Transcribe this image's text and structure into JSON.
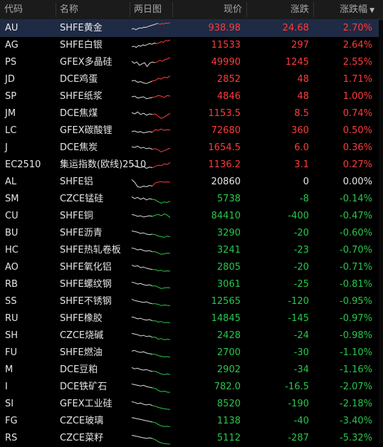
{
  "header": {
    "code": "代码",
    "name": "名称",
    "spark": "两日图",
    "price": "现价",
    "change": "涨跌",
    "pct": "涨跌幅",
    "sort_icon": "caret-down-icon"
  },
  "colors": {
    "up": "#ff3b3b",
    "down": "#28c74a",
    "flat": "#e6e6e6",
    "spark_base": "#dddddd",
    "selected_row": "#1f2a44"
  },
  "rows": [
    {
      "code": "AU",
      "name": "SHFE黄金",
      "price": "938.98",
      "change": "24.68",
      "pct": "2.70%",
      "dir": "up",
      "spark_y": [
        0.55,
        0.5,
        0.6,
        0.52,
        0.45,
        0.48,
        0.4,
        0.42,
        0.35,
        0.3,
        0.25,
        0.2,
        0.15,
        0.1
      ],
      "spark_y2": [
        0.18,
        0.12,
        0.15,
        0.08,
        0.1,
        0.05
      ]
    },
    {
      "code": "AG",
      "name": "SHFE白银",
      "price": "11533",
      "change": "297",
      "pct": "2.64%",
      "dir": "up",
      "spark_y": [
        0.6,
        0.55,
        0.65,
        0.5,
        0.55,
        0.45,
        0.5,
        0.4,
        0.35,
        0.4,
        0.3,
        0.35
      ],
      "spark_y2": [
        0.3,
        0.2,
        0.25,
        0.1,
        0.15,
        0.05
      ]
    },
    {
      "code": "PS",
      "name": "GFEX多晶硅",
      "price": "49990",
      "change": "1245",
      "pct": "2.55%",
      "dir": "up",
      "spark_y": [
        0.4,
        0.55,
        0.45,
        0.7,
        0.6,
        0.5,
        0.8,
        0.55,
        0.45,
        0.5
      ],
      "spark_y2": [
        0.45,
        0.3,
        0.4,
        0.25,
        0.2,
        0.1
      ]
    },
    {
      "code": "JD",
      "name": "DCE鸡蛋",
      "price": "2852",
      "change": "48",
      "pct": "1.71%",
      "dir": "up",
      "spark_y": [
        0.6,
        0.55,
        0.7,
        0.65,
        0.75,
        0.8,
        0.7,
        0.6
      ],
      "spark_y2": [
        0.55,
        0.4,
        0.45,
        0.3,
        0.35,
        0.2
      ]
    },
    {
      "code": "SP",
      "name": "SHFE纸浆",
      "price": "4846",
      "change": "48",
      "pct": "1.00%",
      "dir": "up",
      "spark_y": [
        0.5,
        0.45,
        0.6,
        0.55,
        0.5,
        0.65,
        0.6,
        0.55
      ],
      "spark_y2": [
        0.5,
        0.4,
        0.45,
        0.55,
        0.4,
        0.45
      ]
    },
    {
      "code": "JM",
      "name": "DCE焦煤",
      "price": "1153.5",
      "change": "8.5",
      "pct": "0.74%",
      "dir": "up",
      "spark_y": [
        0.4,
        0.5,
        0.35,
        0.55,
        0.45,
        0.6,
        0.5,
        0.55
      ],
      "spark_y2": [
        0.5,
        0.7,
        0.85,
        0.75,
        0.6,
        0.45
      ]
    },
    {
      "code": "LC",
      "name": "GFEX碳酸锂",
      "price": "72680",
      "change": "360",
      "pct": "0.50%",
      "dir": "up",
      "spark_y": [
        0.55,
        0.5,
        0.6,
        0.55,
        0.65,
        0.6,
        0.55,
        0.6
      ],
      "spark_y2": [
        0.4,
        0.45,
        0.35,
        0.45,
        0.4,
        0.42
      ]
    },
    {
      "code": "J",
      "name": "DCE焦炭",
      "price": "1654.5",
      "change": "6.0",
      "pct": "0.36%",
      "dir": "up",
      "spark_y": [
        0.4,
        0.45,
        0.35,
        0.5,
        0.45,
        0.55,
        0.5,
        0.6
      ],
      "spark_y2": [
        0.55,
        0.65,
        0.8,
        0.7,
        0.6,
        0.5
      ]
    },
    {
      "code": "EC2510",
      "name": "集运指数(欧线)2510",
      "price": "1136.2",
      "change": "3.1",
      "pct": "0.27%",
      "dir": "up",
      "spark_y": [
        0.5,
        0.55,
        0.65,
        0.7,
        0.6,
        0.75,
        0.65,
        0.7
      ],
      "spark_y2": [
        0.6,
        0.5,
        0.55,
        0.4,
        0.45,
        0.3
      ]
    },
    {
      "code": "AL",
      "name": "SHFE铝",
      "price": "20860",
      "change": "0",
      "pct": "0.00%",
      "dir": "flat",
      "spark_y": [
        0.3,
        0.5,
        0.85,
        0.9,
        0.8,
        0.85,
        0.75,
        0.8
      ],
      "spark_y2": [
        0.55,
        0.5,
        0.45,
        0.5,
        0.48,
        0.5
      ]
    },
    {
      "code": "SM",
      "name": "CZCE锰硅",
      "price": "5738",
      "change": "-8",
      "pct": "-0.14%",
      "dir": "down",
      "spark_y": [
        0.3,
        0.45,
        0.35,
        0.5,
        0.4,
        0.55,
        0.45,
        0.5
      ],
      "spark_y2": [
        0.55,
        0.7,
        0.8,
        0.7,
        0.75,
        0.65
      ]
    },
    {
      "code": "CU",
      "name": "SHFE铜",
      "price": "84410",
      "change": "-400",
      "pct": "-0.47%",
      "dir": "down",
      "spark_y": [
        0.35,
        0.4,
        0.5,
        0.45,
        0.55,
        0.5,
        0.45,
        0.5
      ],
      "spark_y2": [
        0.4,
        0.35,
        0.45,
        0.3,
        0.4,
        0.6
      ]
    },
    {
      "code": "BU",
      "name": "SHFE沥青",
      "price": "3290",
      "change": "-20",
      "pct": "-0.60%",
      "dir": "down",
      "spark_y": [
        0.3,
        0.35,
        0.4,
        0.5,
        0.45,
        0.55,
        0.6,
        0.55
      ],
      "spark_y2": [
        0.6,
        0.7,
        0.75,
        0.8,
        0.7,
        0.75
      ]
    },
    {
      "code": "HC",
      "name": "SHFE热轧卷板",
      "price": "3241",
      "change": "-23",
      "pct": "-0.70%",
      "dir": "down",
      "spark_y": [
        0.3,
        0.35,
        0.45,
        0.4,
        0.5,
        0.55,
        0.5,
        0.6
      ],
      "spark_y2": [
        0.6,
        0.7,
        0.8,
        0.75,
        0.7,
        0.72
      ]
    },
    {
      "code": "AO",
      "name": "SHFE氧化铝",
      "price": "2805",
      "change": "-20",
      "pct": "-0.71%",
      "dir": "down",
      "spark_y": [
        0.3,
        0.4,
        0.35,
        0.5,
        0.45,
        0.55,
        0.6,
        0.65
      ],
      "spark_y2": [
        0.65,
        0.75,
        0.7,
        0.8,
        0.75,
        0.78
      ]
    },
    {
      "code": "RB",
      "name": "SHFE螺纹钢",
      "price": "3061",
      "change": "-25",
      "pct": "-0.81%",
      "dir": "down",
      "spark_y": [
        0.3,
        0.35,
        0.45,
        0.4,
        0.5,
        0.55,
        0.5,
        0.6
      ],
      "spark_y2": [
        0.6,
        0.7,
        0.8,
        0.75,
        0.72,
        0.75
      ]
    },
    {
      "code": "SS",
      "name": "SHFE不锈钢",
      "price": "12565",
      "change": "-120",
      "pct": "-0.95%",
      "dir": "down",
      "spark_y": [
        0.3,
        0.4,
        0.45,
        0.5,
        0.55,
        0.5,
        0.6,
        0.65
      ],
      "spark_y2": [
        0.65,
        0.7,
        0.8,
        0.75,
        0.78,
        0.8
      ]
    },
    {
      "code": "RU",
      "name": "SHFE橡胶",
      "price": "14845",
      "change": "-145",
      "pct": "-0.97%",
      "dir": "down",
      "spark_y": [
        0.35,
        0.4,
        0.5,
        0.45,
        0.55,
        0.6,
        0.55,
        0.65
      ],
      "spark_y2": [
        0.65,
        0.75,
        0.7,
        0.8,
        0.78,
        0.8
      ]
    },
    {
      "code": "SH",
      "name": "CZCE烧碱",
      "price": "2428",
      "change": "-24",
      "pct": "-0.98%",
      "dir": "down",
      "spark_y": [
        0.3,
        0.35,
        0.4,
        0.5,
        0.45,
        0.55,
        0.5,
        0.6
      ],
      "spark_y2": [
        0.6,
        0.75,
        0.7,
        0.8,
        0.75,
        0.8
      ]
    },
    {
      "code": "FU",
      "name": "SHFE燃油",
      "price": "2700",
      "change": "-30",
      "pct": "-1.10%",
      "dir": "down",
      "spark_y": [
        0.35,
        0.3,
        0.4,
        0.45,
        0.4,
        0.5,
        0.55,
        0.6
      ],
      "spark_y2": [
        0.6,
        0.7,
        0.75,
        0.8,
        0.78,
        0.82
      ]
    },
    {
      "code": "M",
      "name": "DCE豆粕",
      "price": "2902",
      "change": "-34",
      "pct": "-1.16%",
      "dir": "down",
      "spark_y": [
        0.3,
        0.4,
        0.35,
        0.45,
        0.5,
        0.45,
        0.55,
        0.6
      ],
      "spark_y2": [
        0.6,
        0.7,
        0.8,
        0.85,
        0.8,
        0.85
      ]
    },
    {
      "code": "I",
      "name": "DCE铁矿石",
      "price": "782.0",
      "change": "-16.5",
      "pct": "-2.07%",
      "dir": "down",
      "spark_y": [
        0.25,
        0.3,
        0.35,
        0.4,
        0.35,
        0.45,
        0.5,
        0.55
      ],
      "spark_y2": [
        0.6,
        0.75,
        0.85,
        0.8,
        0.88,
        0.9
      ]
    },
    {
      "code": "SI",
      "name": "GFEX工业硅",
      "price": "8520",
      "change": "-190",
      "pct": "-2.18%",
      "dir": "down",
      "spark_y": [
        0.3,
        0.35,
        0.45,
        0.4,
        0.5,
        0.55,
        0.5,
        0.6
      ],
      "spark_y2": [
        0.65,
        0.75,
        0.8,
        0.85,
        0.88,
        0.9
      ]
    },
    {
      "code": "FG",
      "name": "CZCE玻璃",
      "price": "1138",
      "change": "-40",
      "pct": "-3.40%",
      "dir": "down",
      "spark_y": [
        0.2,
        0.25,
        0.3,
        0.35,
        0.4,
        0.45,
        0.5,
        0.55
      ],
      "spark_y2": [
        0.6,
        0.75,
        0.85,
        0.9,
        0.88,
        0.92
      ]
    },
    {
      "code": "RS",
      "name": "CZCE菜籽",
      "price": "5112",
      "change": "-287",
      "pct": "-5.32%",
      "dir": "down",
      "spark_y": [
        0.25,
        0.3,
        0.35,
        0.4,
        0.45,
        0.5,
        0.45,
        0.5
      ],
      "spark_y2": [
        0.6,
        0.75,
        0.85,
        0.9,
        0.92,
        0.95
      ]
    }
  ],
  "selected_row_index": 0
}
